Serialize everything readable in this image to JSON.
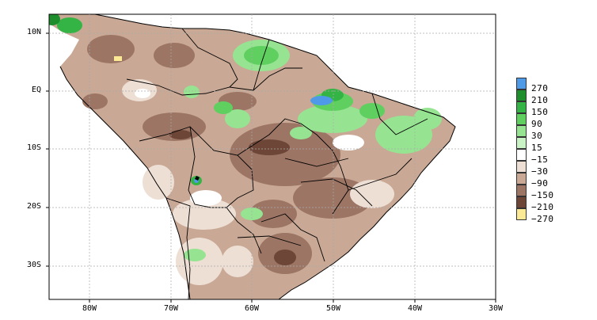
{
  "map": {
    "y_tick_labels": [
      "10N",
      "EQ",
      "10S",
      "20S",
      "30S"
    ],
    "x_tick_labels": [
      "80W",
      "70W",
      "60W",
      "50W",
      "40W",
      "30W"
    ],
    "lon_range": [
      -85,
      -30
    ],
    "lat_range": [
      -36,
      13
    ]
  },
  "legend": {
    "entries": [
      {
        "label": "270",
        "color": "#4f9ae8"
      },
      {
        "label": "210",
        "color": "#1f8f2e"
      },
      {
        "label": "150",
        "color": "#34b444"
      },
      {
        "label": "90",
        "color": "#5fd060"
      },
      {
        "label": "30",
        "color": "#96e491"
      },
      {
        "label": "15",
        "color": "#c9f3c4"
      },
      {
        "label": "−15",
        "color": "#ffffff"
      },
      {
        "label": "−30",
        "color": "#eedfd5"
      },
      {
        "label": "−90",
        "color": "#c9a895"
      },
      {
        "label": "−150",
        "color": "#9c7565"
      },
      {
        "label": "−210",
        "color": "#6e4637"
      },
      {
        "label": "−270",
        "color": "#fbe995"
      }
    ]
  }
}
